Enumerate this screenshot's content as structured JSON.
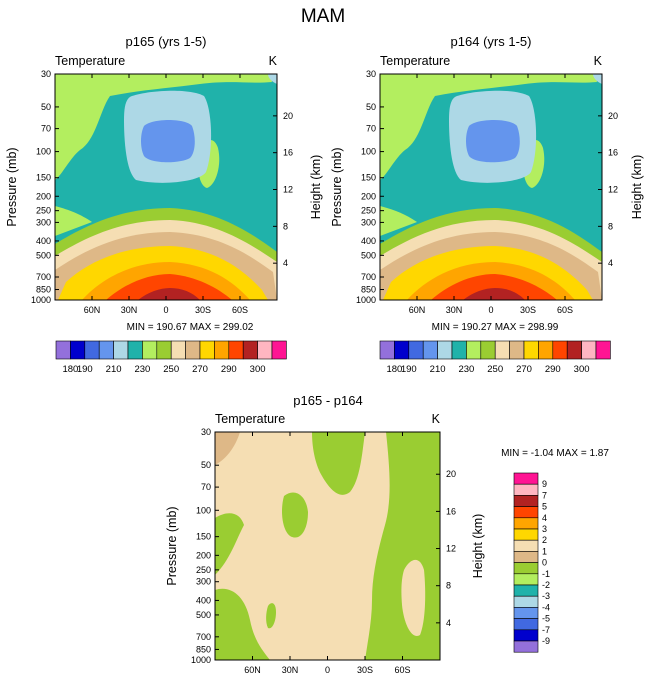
{
  "figure_title": "MAM",
  "chart_data": [
    {
      "type": "contour",
      "title": "p165 (yrs 1-5)",
      "variable_label": "Temperature",
      "units": "K",
      "xlabel": "",
      "ylabel": "Pressure (mb)",
      "y2label": "Height (km)",
      "x_ticks": [
        "60N",
        "30N",
        "0",
        "30S",
        "60S"
      ],
      "x_tick_values": [
        60,
        30,
        0,
        -30,
        -60
      ],
      "xlim": [
        90,
        -90
      ],
      "y_ticks": [
        "30",
        "50",
        "70",
        "100",
        "150",
        "200",
        "250",
        "300",
        "400",
        "500",
        "700",
        "850",
        "1000"
      ],
      "y_tick_values": [
        30,
        50,
        70,
        100,
        150,
        200,
        250,
        300,
        400,
        500,
        700,
        850,
        1000
      ],
      "ylim": [
        1000,
        30
      ],
      "y2_ticks": [
        "4",
        "8",
        "12",
        "16",
        "20"
      ],
      "y2_tick_values": [
        4,
        8,
        12,
        16,
        20
      ],
      "stats": "MIN = 190.67   MAX = 299.02",
      "min": 190.67,
      "max": 299.02,
      "legend_labels": [
        "180",
        "190",
        "210",
        "230",
        "250",
        "270",
        "290",
        "300"
      ],
      "legend_colors": [
        "#9370db",
        "#0000cd",
        "#4169e1",
        "#6495ed",
        "#add8e6",
        "#20b2aa",
        "#b3ee5f",
        "#9acd32",
        "#f5deb3",
        "#deb887",
        "#ffd700",
        "#ffa500",
        "#ff4500",
        "#b22222",
        "#ffb6c1",
        "#ff1493"
      ]
    },
    {
      "type": "contour",
      "title": "p164 (yrs 1-5)",
      "variable_label": "Temperature",
      "units": "K",
      "xlabel": "",
      "ylabel": "Pressure (mb)",
      "y2label": "Height (km)",
      "x_ticks": [
        "60N",
        "30N",
        "0",
        "30S",
        "60S"
      ],
      "x_tick_values": [
        60,
        30,
        0,
        -30,
        -60
      ],
      "xlim": [
        90,
        -90
      ],
      "y_ticks": [
        "30",
        "50",
        "70",
        "100",
        "150",
        "200",
        "250",
        "300",
        "400",
        "500",
        "700",
        "850",
        "1000"
      ],
      "y_tick_values": [
        30,
        50,
        70,
        100,
        150,
        200,
        250,
        300,
        400,
        500,
        700,
        850,
        1000
      ],
      "ylim": [
        1000,
        30
      ],
      "y2_ticks": [
        "4",
        "8",
        "12",
        "16",
        "20"
      ],
      "y2_tick_values": [
        4,
        8,
        12,
        16,
        20
      ],
      "stats": "MIN = 190.27   MAX = 298.99",
      "min": 190.27,
      "max": 298.99,
      "legend_labels": [
        "180",
        "190",
        "210",
        "230",
        "250",
        "270",
        "290",
        "300"
      ],
      "legend_colors": [
        "#9370db",
        "#0000cd",
        "#4169e1",
        "#6495ed",
        "#add8e6",
        "#20b2aa",
        "#b3ee5f",
        "#9acd32",
        "#f5deb3",
        "#deb887",
        "#ffd700",
        "#ffa500",
        "#ff4500",
        "#b22222",
        "#ffb6c1",
        "#ff1493"
      ]
    },
    {
      "type": "contour",
      "title": "p165 - p164",
      "variable_label": "Temperature",
      "units": "K",
      "xlabel": "",
      "ylabel": "Pressure (mb)",
      "y2label": "Height (km)",
      "x_ticks": [
        "60N",
        "30N",
        "0",
        "30S",
        "60S"
      ],
      "x_tick_values": [
        60,
        30,
        0,
        -30,
        -60
      ],
      "xlim": [
        90,
        -90
      ],
      "y_ticks": [
        "30",
        "50",
        "70",
        "100",
        "150",
        "200",
        "250",
        "300",
        "400",
        "500",
        "700",
        "850",
        "1000"
      ],
      "y_tick_values": [
        30,
        50,
        70,
        100,
        150,
        200,
        250,
        300,
        400,
        500,
        700,
        850,
        1000
      ],
      "ylim": [
        1000,
        30
      ],
      "y2_ticks": [
        "4",
        "8",
        "12",
        "16",
        "20"
      ],
      "y2_tick_values": [
        4,
        8,
        12,
        16,
        20
      ],
      "stats": "MIN =  -1.04   MAX =   1.87",
      "min": -1.04,
      "max": 1.87,
      "legend_labels": [
        "9",
        "7",
        "5",
        "4",
        "3",
        "2",
        "1",
        "0",
        "-1",
        "-2",
        "-3",
        "-4",
        "-5",
        "-7",
        "-9"
      ],
      "legend_colors": [
        "#ff1493",
        "#ffb6c1",
        "#b22222",
        "#ff4500",
        "#ffa500",
        "#ffd700",
        "#f5deb3",
        "#deb887",
        "#9acd32",
        "#b3ee5f",
        "#20b2aa",
        "#add8e6",
        "#6495ed",
        "#4169e1",
        "#0000cd",
        "#9370db"
      ]
    }
  ]
}
